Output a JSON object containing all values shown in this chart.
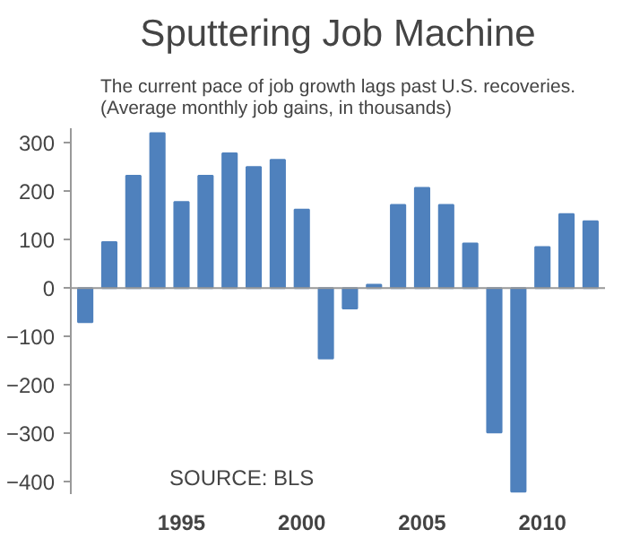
{
  "chart_data": {
    "type": "bar",
    "title": "Sputtering Job Machine",
    "subtitle": "The current pace of job growth lags past U.S. recoveries.\n(Average monthly job gains, in thousands)",
    "categories": [
      null,
      null,
      null,
      null,
      "1995",
      null,
      null,
      null,
      null,
      "2000",
      null,
      null,
      null,
      null,
      "2005",
      null,
      null,
      null,
      null,
      "2010",
      null,
      null
    ],
    "values": [
      -70,
      95,
      232,
      320,
      178,
      232,
      278,
      250,
      265,
      162,
      -145,
      -42,
      7,
      172,
      207,
      172,
      92,
      -298,
      -420,
      85,
      153,
      138
    ],
    "color": "#4f81bd",
    "ylim": [
      -425,
      330
    ],
    "yticks": [
      -400,
      -300,
      -200,
      -100,
      0,
      100,
      200,
      300
    ],
    "grid": false,
    "ref_lines": [
      {
        "axis": "y",
        "value": 0,
        "color": "#999999"
      }
    ],
    "annotations": [
      "SOURCE: BLS"
    ]
  }
}
